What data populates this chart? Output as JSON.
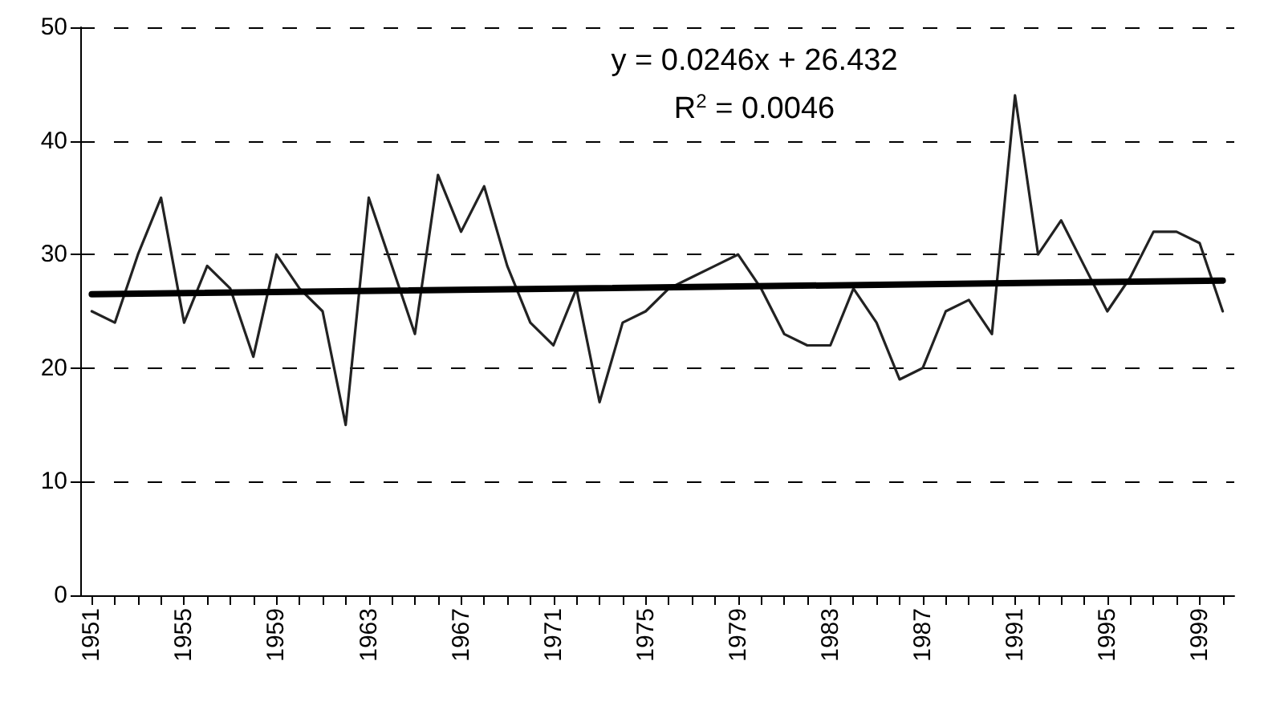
{
  "chart_data": {
    "type": "line",
    "x": [
      1951,
      1952,
      1953,
      1954,
      1955,
      1956,
      1957,
      1958,
      1959,
      1960,
      1961,
      1962,
      1963,
      1964,
      1965,
      1966,
      1967,
      1968,
      1969,
      1970,
      1971,
      1972,
      1973,
      1974,
      1975,
      1976,
      1977,
      1978,
      1979,
      1980,
      1981,
      1982,
      1983,
      1984,
      1985,
      1986,
      1987,
      1988,
      1989,
      1990,
      1991,
      1992,
      1993,
      1994,
      1995,
      1996,
      1997,
      1998,
      1999,
      2000
    ],
    "series": [
      {
        "color": "#222222",
        "values": [
          25,
          24,
          30,
          35,
          24,
          29,
          27,
          21,
          30,
          27,
          25,
          15,
          35,
          29,
          23,
          37,
          32,
          36,
          29,
          24,
          22,
          27,
          17,
          24,
          25,
          27,
          28,
          29,
          30,
          27,
          23,
          22,
          22,
          27,
          24,
          19,
          20,
          25,
          26,
          23,
          44,
          30,
          33,
          29,
          25,
          28,
          32,
          32,
          31,
          25
        ]
      },
      {
        "color": "#000000",
        "x": [
          1951,
          2000
        ],
        "values": [
          26.5,
          27.7
        ]
      }
    ],
    "annotations": [
      "y = 0.0246x + 26.432",
      "R$^{2}$ = 0.0046"
    ],
    "xlim": [
      1950.5,
      2000.5
    ],
    "xticks": [
      {
        "value": 1951,
        "label": "1951"
      },
      {
        "value": 1952,
        "label": null
      },
      {
        "value": 1953,
        "label": null
      },
      {
        "value": 1954,
        "label": null
      },
      {
        "value": 1955,
        "label": "1955"
      },
      {
        "value": 1956,
        "label": null
      },
      {
        "value": 1957,
        "label": null
      },
      {
        "value": 1958,
        "label": null
      },
      {
        "value": 1959,
        "label": "1959"
      },
      {
        "value": 1960,
        "label": null
      },
      {
        "value": 1961,
        "label": null
      },
      {
        "value": 1962,
        "label": null
      },
      {
        "value": 1963,
        "label": "1963"
      },
      {
        "value": 1964,
        "label": null
      },
      {
        "value": 1965,
        "label": null
      },
      {
        "value": 1966,
        "label": null
      },
      {
        "value": 1967,
        "label": "1967"
      },
      {
        "value": 1968,
        "label": null
      },
      {
        "value": 1969,
        "label": null
      },
      {
        "value": 1970,
        "label": null
      },
      {
        "value": 1971,
        "label": "1971"
      },
      {
        "value": 1972,
        "label": null
      },
      {
        "value": 1973,
        "label": null
      },
      {
        "value": 1974,
        "label": null
      },
      {
        "value": 1975,
        "label": "1975"
      },
      {
        "value": 1976,
        "label": null
      },
      {
        "value": 1977,
        "label": null
      },
      {
        "value": 1978,
        "label": null
      },
      {
        "value": 1979,
        "label": "1979"
      },
      {
        "value": 1980,
        "label": null
      },
      {
        "value": 1981,
        "label": null
      },
      {
        "value": 1982,
        "label": null
      },
      {
        "value": 1983,
        "label": "1983"
      },
      {
        "value": 1984,
        "label": null
      },
      {
        "value": 1985,
        "label": null
      },
      {
        "value": 1986,
        "label": null
      },
      {
        "value": 1987,
        "label": "1987"
      },
      {
        "value": 1988,
        "label": null
      },
      {
        "value": 1989,
        "label": null
      },
      {
        "value": 1990,
        "label": null
      },
      {
        "value": 1991,
        "label": "1991"
      },
      {
        "value": 1992,
        "label": null
      },
      {
        "value": 1993,
        "label": null
      },
      {
        "value": 1994,
        "label": null
      },
      {
        "value": 1995,
        "label": "1995"
      },
      {
        "value": 1996,
        "label": null
      },
      {
        "value": 1997,
        "label": null
      },
      {
        "value": 1998,
        "label": null
      },
      {
        "value": 1999,
        "label": "1999"
      },
      {
        "value": 2000,
        "label": null
      }
    ],
    "ylim": [
      0,
      50
    ],
    "yticks": [
      0,
      10,
      20,
      30,
      40,
      50
    ],
    "grid": "y",
    "marker": "none",
    "line_style": "solid"
  }
}
